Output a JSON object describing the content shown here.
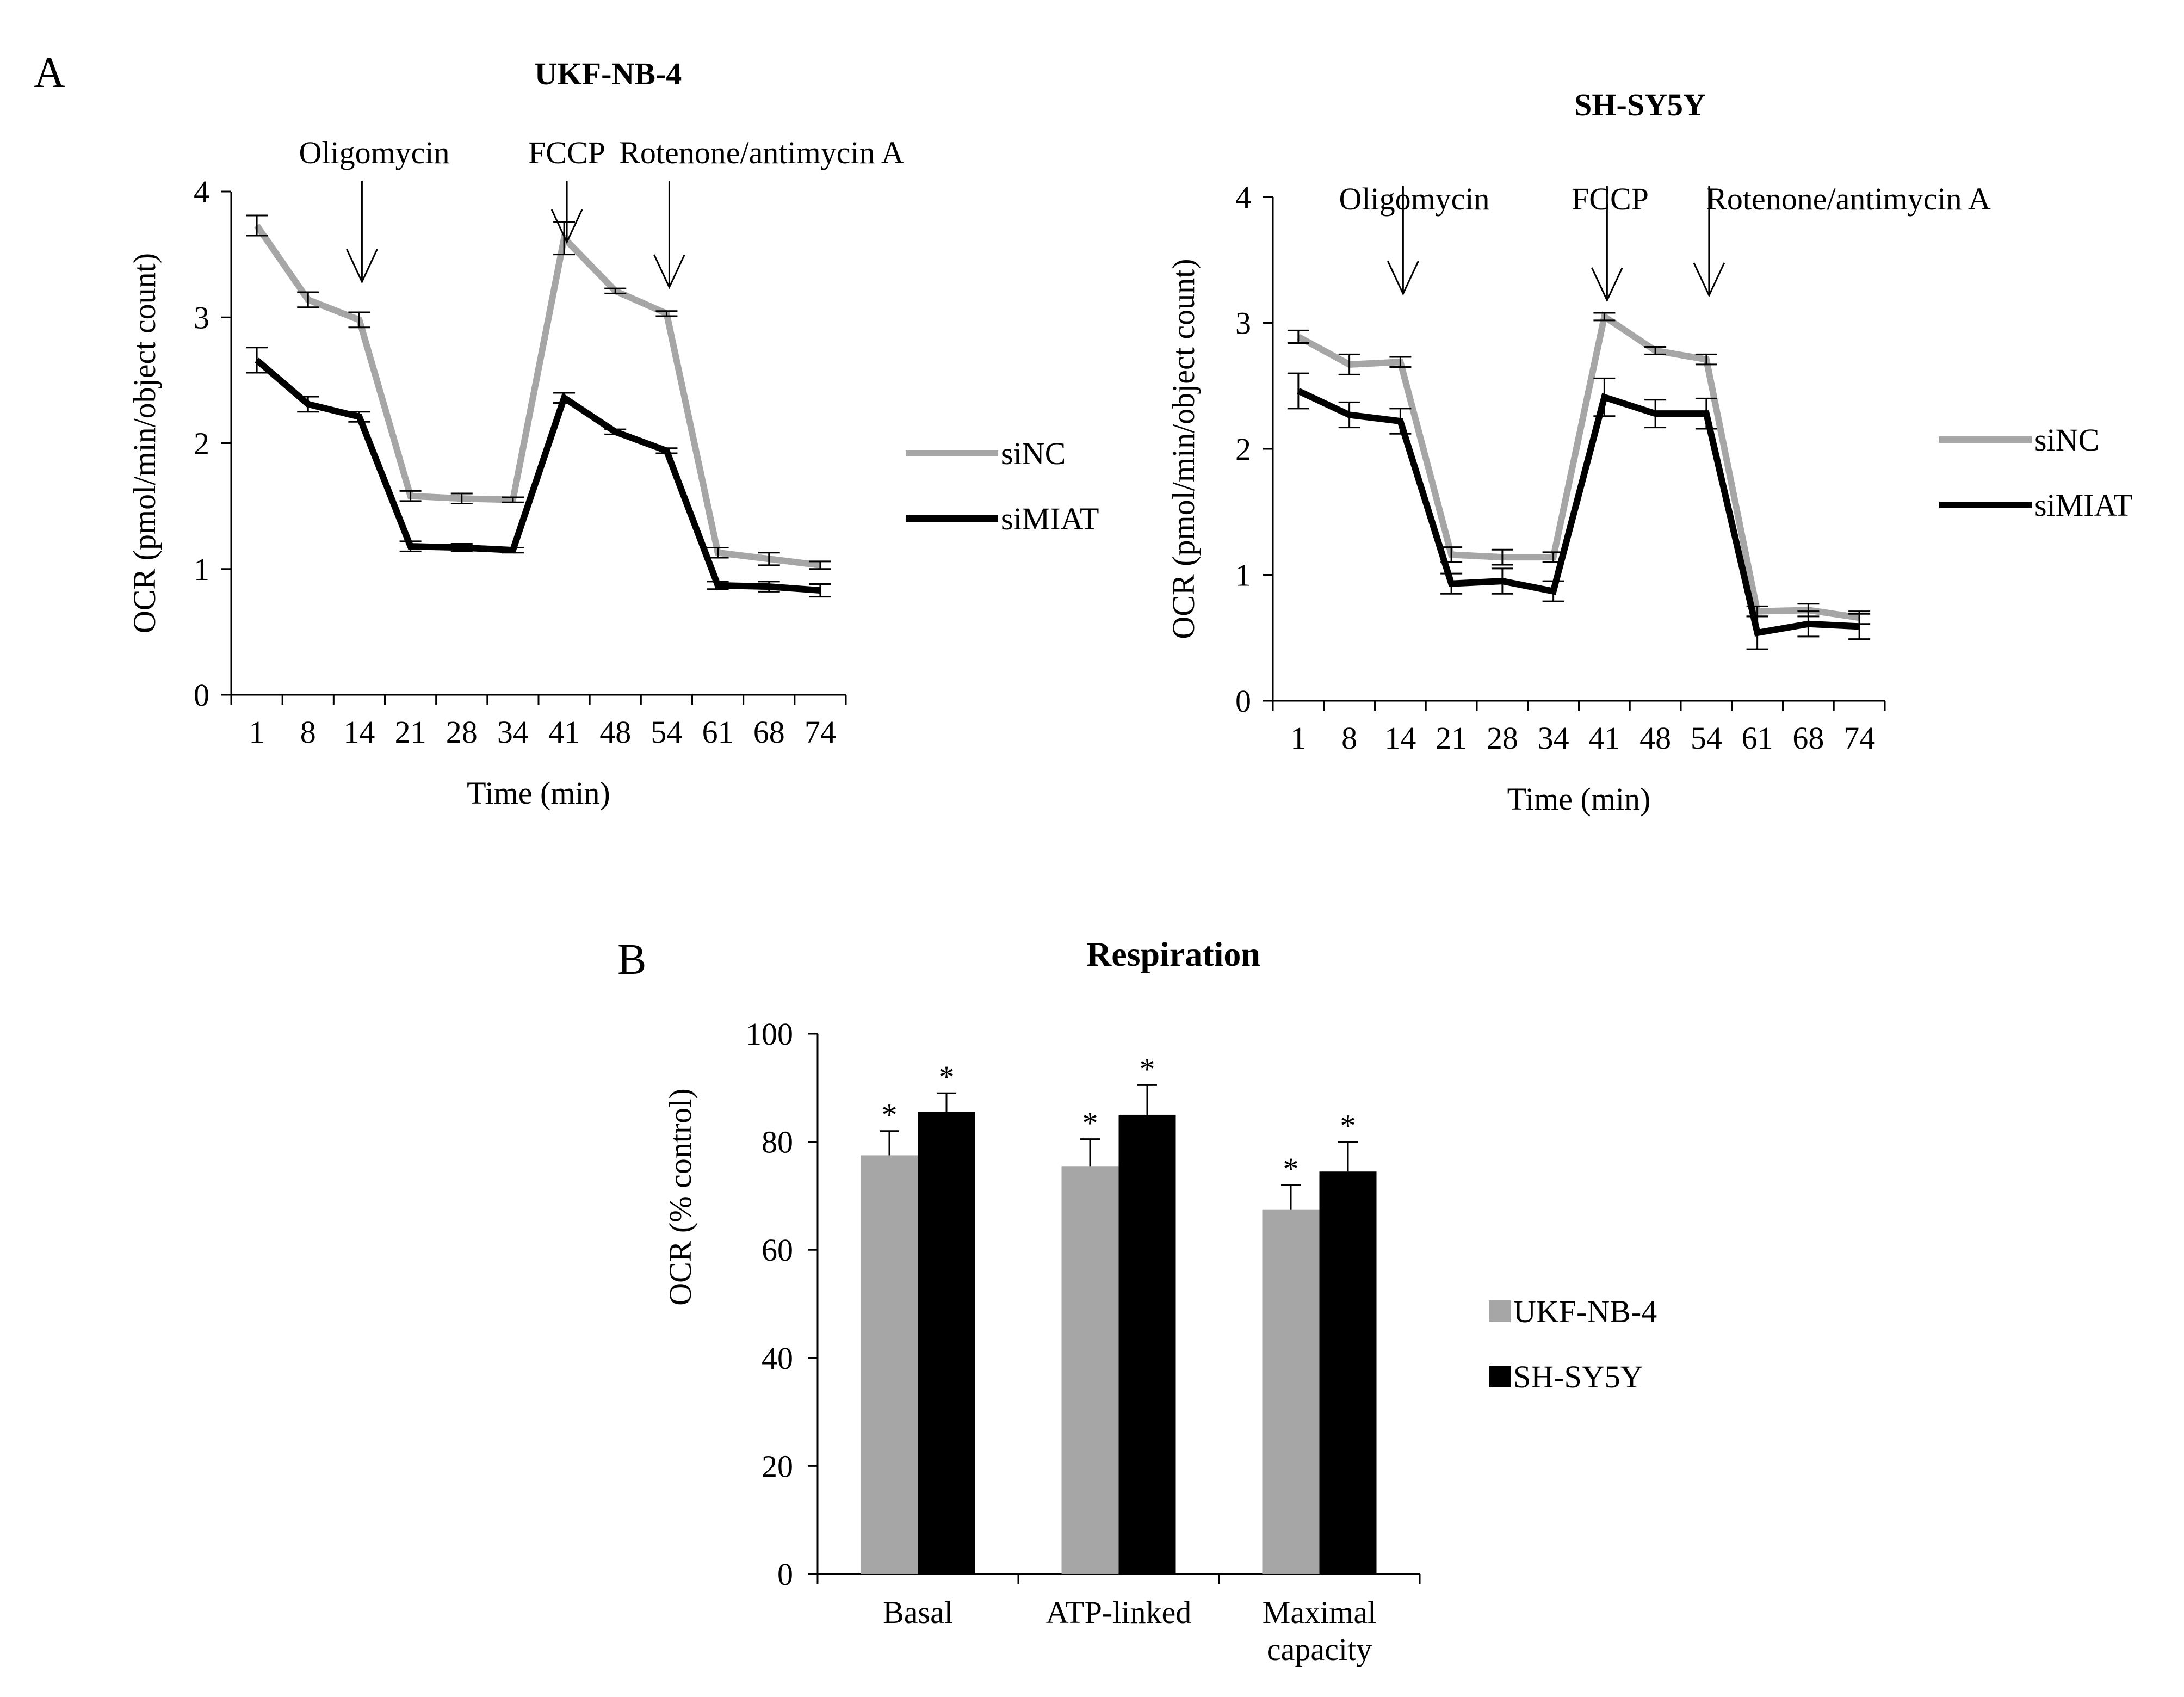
{
  "panel_labels": {
    "a": "A",
    "b": "B"
  },
  "chart_data": [
    {
      "type": "line",
      "title": "UKF-NB-4",
      "xlabel": "Time (min)",
      "ylabel": "OCR (pmol/min/object count)",
      "categories": [
        "1",
        "8",
        "14",
        "21",
        "28",
        "34",
        "41",
        "48",
        "54",
        "61",
        "68",
        "74"
      ],
      "ylim": [
        0,
        4
      ],
      "yticks": [
        "0",
        "1",
        "2",
        "3",
        "4"
      ],
      "series": [
        {
          "name": "siNC",
          "color": "#a6a6a6",
          "values": [
            3.73,
            3.14,
            2.98,
            1.58,
            1.56,
            1.55,
            3.63,
            3.21,
            3.03,
            1.13,
            1.08,
            1.03
          ],
          "errors": [
            0.08,
            0.06,
            0.06,
            0.04,
            0.04,
            0.02,
            0.13,
            0.02,
            0.02,
            0.04,
            0.05,
            0.03
          ]
        },
        {
          "name": "siMIAT",
          "color": "#000000",
          "values": [
            2.66,
            2.31,
            2.21,
            1.18,
            1.17,
            1.15,
            2.36,
            2.09,
            1.94,
            0.87,
            0.86,
            0.83
          ],
          "errors": [
            0.1,
            0.06,
            0.04,
            0.04,
            0.03,
            0.02,
            0.04,
            0.02,
            0.02,
            0.03,
            0.04,
            0.05
          ]
        }
      ],
      "injections": [
        {
          "label": "Oligomycin",
          "after_category": "14"
        },
        {
          "label": "FCCP",
          "after_category": "41"
        },
        {
          "label": "Rotenone/antimycin A",
          "after_category": "54"
        }
      ],
      "legend": "right"
    },
    {
      "type": "line",
      "title": "SH-SY5Y",
      "xlabel": "Time (min)",
      "ylabel": "OCR (pmol/min/object count)",
      "categories": [
        "1",
        "8",
        "14",
        "21",
        "28",
        "34",
        "41",
        "48",
        "54",
        "61",
        "68",
        "74"
      ],
      "ylim": [
        0,
        4
      ],
      "yticks": [
        "0",
        "1",
        "2",
        "3",
        "4"
      ],
      "series": [
        {
          "name": "siNC",
          "color": "#a6a6a6",
          "values": [
            2.89,
            2.67,
            2.69,
            1.16,
            1.14,
            1.14,
            3.05,
            2.78,
            2.71,
            0.71,
            0.72,
            0.66
          ],
          "errors": [
            0.05,
            0.08,
            0.04,
            0.06,
            0.06,
            0.04,
            0.03,
            0.03,
            0.04,
            0.04,
            0.05,
            0.05
          ]
        },
        {
          "name": "siMIAT",
          "color": "#000000",
          "values": [
            2.46,
            2.27,
            2.22,
            0.93,
            0.95,
            0.87,
            2.41,
            2.28,
            2.28,
            0.54,
            0.61,
            0.59
          ],
          "errors": [
            0.14,
            0.1,
            0.1,
            0.08,
            0.1,
            0.08,
            0.15,
            0.11,
            0.12,
            0.13,
            0.1,
            0.1
          ]
        }
      ],
      "injections": [
        {
          "label": "Oligomycin",
          "after_category": "14"
        },
        {
          "label": "FCCP",
          "after_category": "41"
        },
        {
          "label": "Rotenone/antimycin A",
          "after_category": "54"
        }
      ],
      "legend": "right"
    },
    {
      "type": "bar",
      "title": "Respiration",
      "xlabel": "",
      "ylabel": "OCR (% control)",
      "categories": [
        "Basal",
        "ATP-linked",
        "Maximal capacity"
      ],
      "ylim": [
        0,
        100
      ],
      "yticks": [
        "0",
        "20",
        "40",
        "60",
        "80",
        "100"
      ],
      "series": [
        {
          "name": "UKF-NB-4",
          "color": "#a6a6a6",
          "values": [
            77.5,
            75.5,
            67.5
          ],
          "errors": [
            4.5,
            5,
            4.5
          ]
        },
        {
          "name": "SH-SY5Y",
          "color": "#000000",
          "values": [
            85.5,
            85,
            74.5
          ],
          "errors": [
            3.5,
            5.5,
            5.5
          ]
        }
      ],
      "significance_marker": "*",
      "legend": "right"
    }
  ]
}
